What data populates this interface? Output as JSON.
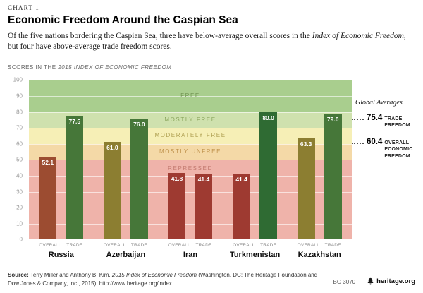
{
  "page": {
    "kicker": "CHART 1",
    "title": "Economic Freedom Around the Caspian Sea",
    "subtitle": {
      "part1": "Of the five nations bordering the Caspian Sea, three have below-average overall scores in the ",
      "italic": "Index of Economic Freedom,",
      "part2": " but four have above-average trade freedom scores."
    },
    "section_label": {
      "part1": "SCORES IN THE ",
      "italic": "2015 INDEX OF ECONOMIC FREEDOM"
    }
  },
  "chart_data": {
    "type": "bar",
    "title": "Scores in the 2015 Index of Economic Freedom",
    "categories": [
      "Russia",
      "Azerbaijan",
      "Iran",
      "Turkmenistan",
      "Kazakhstan"
    ],
    "series": [
      {
        "name": "OVERALL",
        "values": [
          52.1,
          61.0,
          41.8,
          41.4,
          63.3
        ],
        "colors": [
          "#9c4c31",
          "#8c7e31",
          "#9e3a31",
          "#9e3a31",
          "#8c7e31"
        ]
      },
      {
        "name": "TRADE",
        "values": [
          77.5,
          76.0,
          41.4,
          80.0,
          79.0
        ],
        "colors": [
          "#467739",
          "#467739",
          "#9e3a31",
          "#2f6b33",
          "#467739"
        ]
      }
    ],
    "ylim": [
      0,
      100
    ],
    "ytick_step": 10,
    "grid": true,
    "bands": [
      {
        "label": "FREE",
        "from": 80,
        "to": 100,
        "color": "#a9ce8e",
        "label_color": "#6f9350"
      },
      {
        "label": "MOSTLY FREE",
        "from": 70,
        "to": 80,
        "color": "#cfe1ae",
        "label_color": "#8ba65e"
      },
      {
        "label": "MODERATELY FREE",
        "from": 60,
        "to": 70,
        "color": "#f6efb6",
        "label_color": "#b1a254"
      },
      {
        "label": "MOSTLY UNFREE",
        "from": 50,
        "to": 60,
        "color": "#f4d9a7",
        "label_color": "#c0934d"
      },
      {
        "label": "REPRESSED",
        "from": 0,
        "to": 50,
        "color": "#efb3aa",
        "label_color": "#c47c72",
        "label_pos": "top"
      }
    ],
    "global_averages": {
      "heading": "Global Averages",
      "items": [
        {
          "value": "75.4",
          "label": "TRADE FREEDOM",
          "y": 75.4
        },
        {
          "value": "60.4",
          "label": "OVERALL ECONOMIC FREEDOM",
          "y": 60.4
        }
      ]
    }
  },
  "footer": {
    "source_label": "Source:",
    "source_text1": " Terry Miller and Anthony B. Kim, ",
    "source_italic": "2015 Index of Economic Freedom",
    "source_text2": " (Washington, DC: The Heritage Foundation and Dow Jones & Company, Inc., 2015), http://www.heritage.org/index.",
    "chart_id": "BG 3070",
    "brand": "heritage.org"
  }
}
